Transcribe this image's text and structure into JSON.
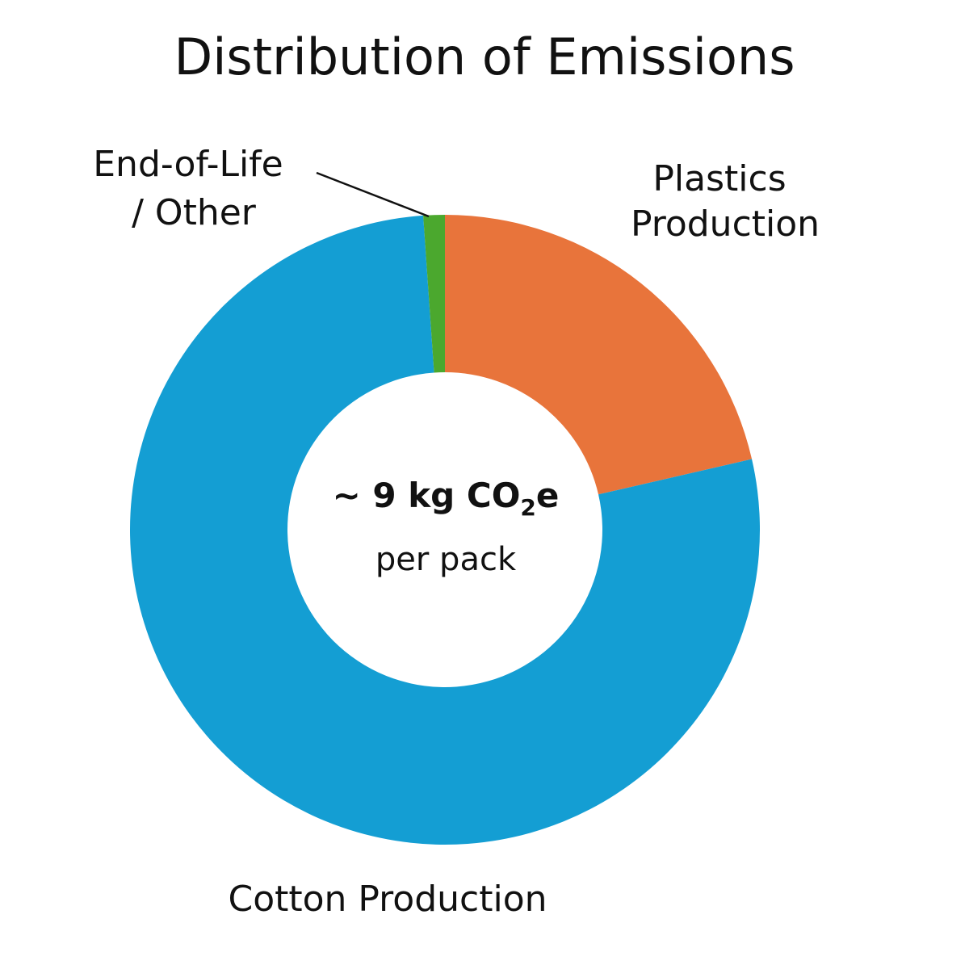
{
  "chart_data": {
    "type": "pie",
    "title": "Distribution of Emissions",
    "center_label": {
      "value": "~ 9 kg CO",
      "subscript": "2",
      "suffix": "e",
      "sub": "per pack"
    },
    "slices": [
      {
        "name": "Plastics Production",
        "label_lines": [
          "Plastics",
          "Production"
        ],
        "value": 21.4,
        "color": "#E8743B"
      },
      {
        "name": "Cotton Production",
        "label_lines": [
          "Cotton Production"
        ],
        "value": 77.5,
        "color": "#149ED3"
      },
      {
        "name": "End-of-Life / Other",
        "label_lines": [
          "End-of-Life",
          "/ Other"
        ],
        "value": 1.1,
        "color": "#4BA82E"
      }
    ],
    "donut": true
  }
}
